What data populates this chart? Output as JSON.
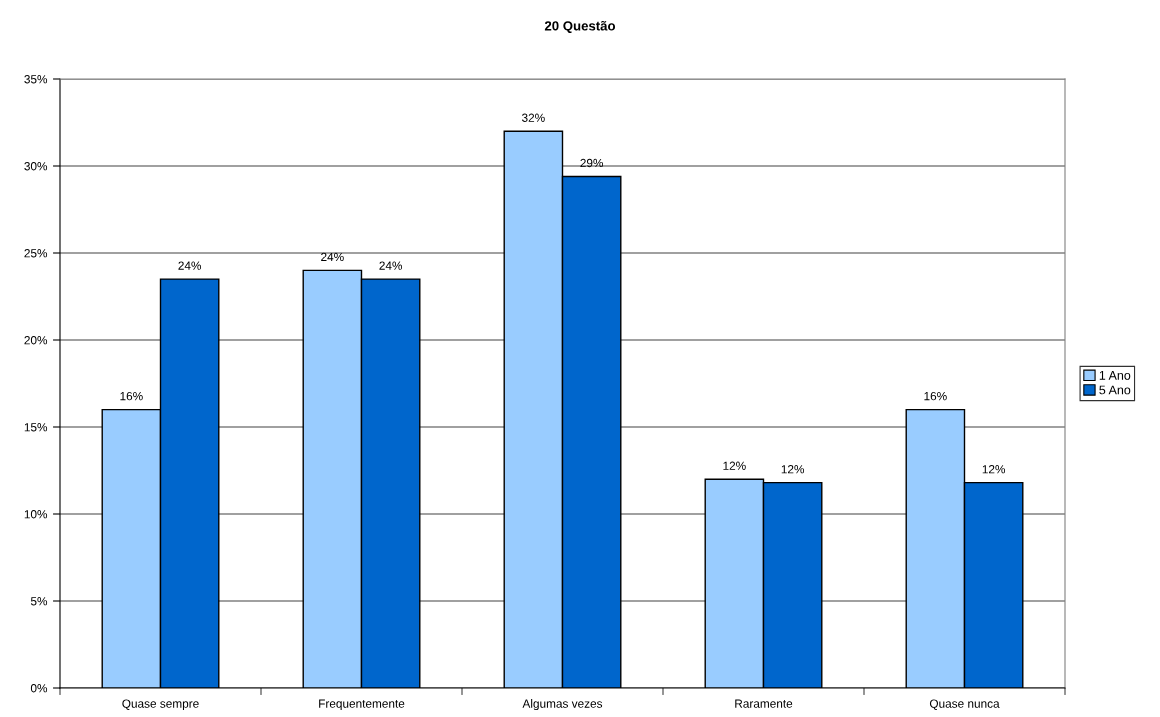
{
  "chart_data": {
    "type": "bar",
    "title": "20 Questão",
    "categories": [
      "Quase sempre",
      "Frequentemente",
      "Algumas vezes",
      "Raramente",
      "Quase nunca"
    ],
    "series": [
      {
        "name": "1 Ano",
        "color": "#99ccff",
        "values": [
          16,
          24,
          32,
          12,
          16
        ],
        "value_labels": [
          "16%",
          "24%",
          "32%",
          "12%",
          "16%"
        ]
      },
      {
        "name": "5 Ano",
        "color": "#0066cc",
        "values": [
          23.5,
          23.5,
          29.4,
          11.8,
          11.8
        ],
        "value_labels": [
          "24%",
          "24%",
          "29%",
          "12%",
          "12%"
        ]
      }
    ],
    "ylim": [
      0,
      35
    ],
    "yticks": [
      {
        "value": 0,
        "label": "0%"
      },
      {
        "value": 5,
        "label": "5%"
      },
      {
        "value": 10,
        "label": "10%"
      },
      {
        "value": 15,
        "label": "15%"
      },
      {
        "value": 20,
        "label": "20%"
      },
      {
        "value": 25,
        "label": "25%"
      },
      {
        "value": 30,
        "label": "30%"
      },
      {
        "value": 35,
        "label": "35%"
      }
    ],
    "grid": "y",
    "legend": "right"
  }
}
